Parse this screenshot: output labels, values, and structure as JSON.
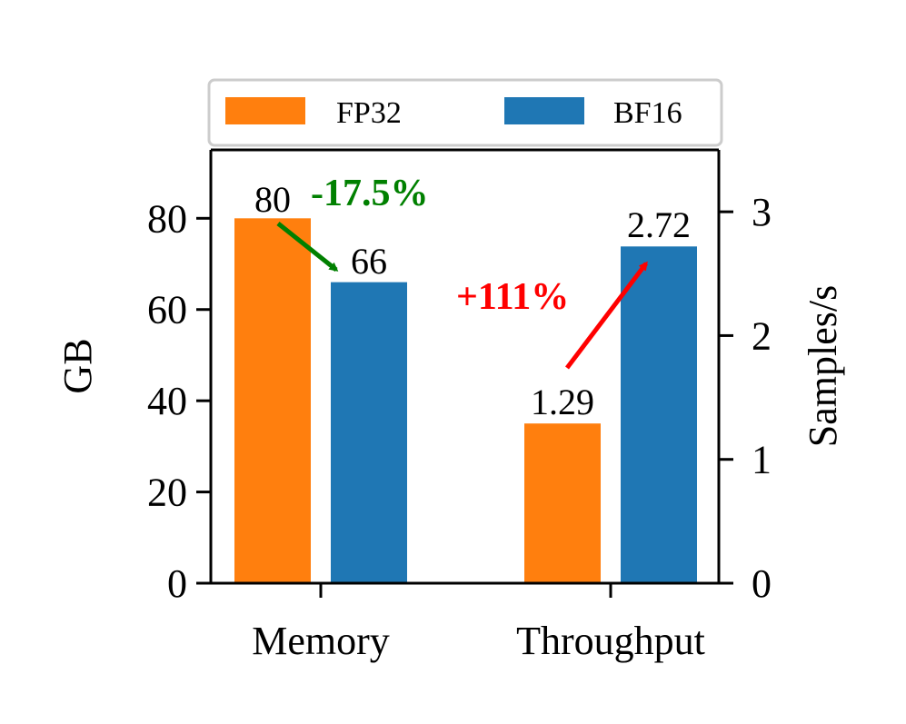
{
  "chart_data": {
    "type": "bar",
    "categories": [
      "Memory",
      "Throughput"
    ],
    "series": [
      {
        "name": "FP32",
        "color": "#ff7f0e",
        "values": [
          80,
          1.29
        ]
      },
      {
        "name": "BF16",
        "color": "#1f77b4",
        "values": [
          66,
          2.72
        ]
      }
    ],
    "value_labels": {
      "FP32": [
        "80",
        "1.29"
      ],
      "BF16": [
        "66",
        "2.72"
      ]
    },
    "left_axis": {
      "label": "GB",
      "applies_to": "Memory",
      "ticks": [
        "0",
        "20",
        "40",
        "60",
        "80"
      ],
      "tick_values": [
        0,
        20,
        40,
        60,
        80
      ],
      "ylim": [
        0,
        95
      ]
    },
    "right_axis": {
      "label": "Samples/s",
      "applies_to": "Throughput",
      "ticks": [
        "0",
        "1",
        "2",
        "3"
      ],
      "tick_values": [
        0,
        1,
        2,
        3
      ],
      "ylim": [
        0,
        3.5
      ]
    },
    "annotations": [
      {
        "category": "Memory",
        "text": "-17.5%",
        "color": "#008000"
      },
      {
        "category": "Throughput",
        "text": "+111%",
        "color": "#ff0000"
      }
    ],
    "legend": {
      "placement": "top",
      "columns": 2
    },
    "grid": false
  }
}
